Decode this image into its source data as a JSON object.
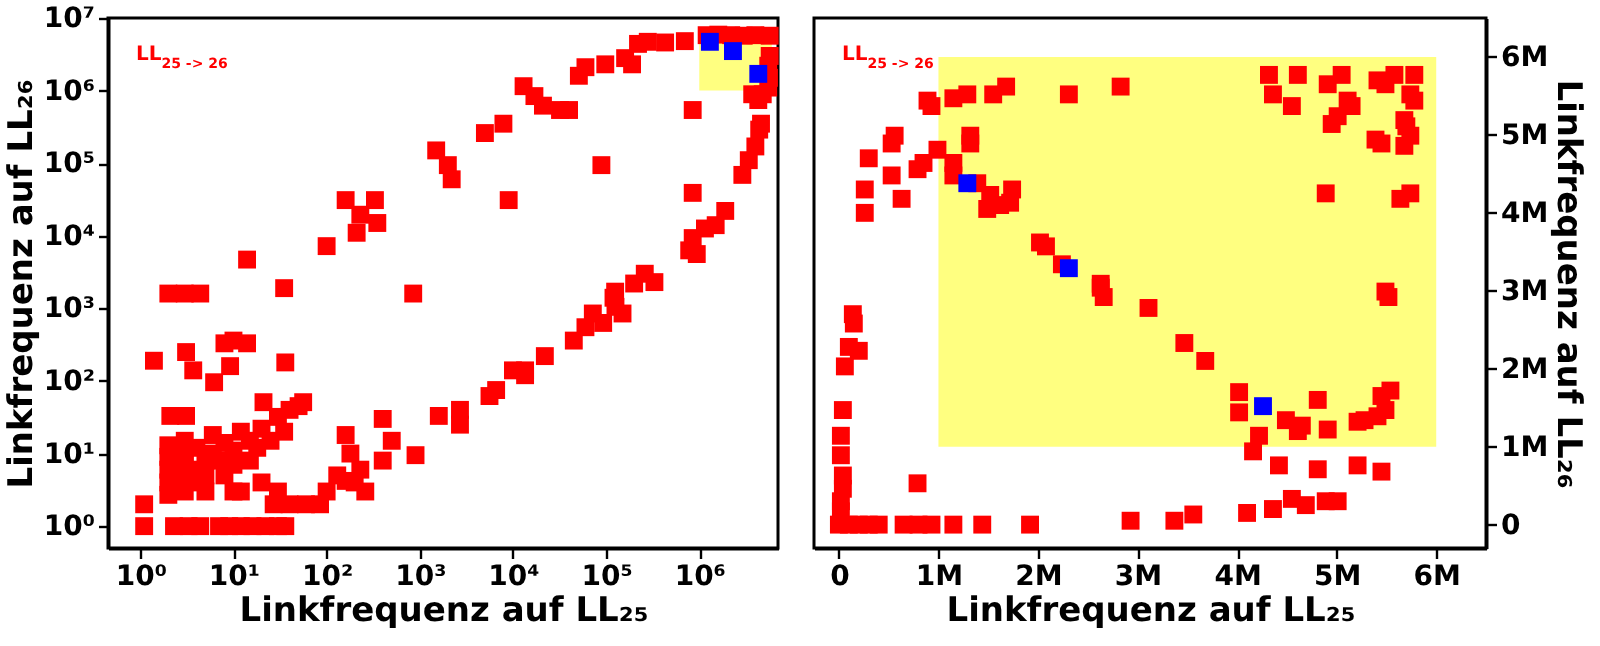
{
  "chart_data": [
    {
      "type": "scatter",
      "xlabel": "Linkfrequenz auf LL₂₅",
      "ylabel": "Linkfrequenz auf LL₂₆",
      "annotations": [
        "LL$_{25 -> 26}$"
      ],
      "log": "xy",
      "marker": "square",
      "xlim": [
        0.45,
        7000000
      ],
      "ylim": [
        0.5,
        10000000
      ],
      "xticks": [
        {
          "value": 1,
          "label": "10⁰"
        },
        {
          "value": 10,
          "label": "10¹"
        },
        {
          "value": 100,
          "label": "10²"
        },
        {
          "value": 1000,
          "label": "10³"
        },
        {
          "value": 10000,
          "label": "10⁴"
        },
        {
          "value": 100000,
          "label": "10⁵"
        },
        {
          "value": 1000000,
          "label": "10⁶"
        }
      ],
      "yticks": [
        {
          "value": 1,
          "label": "10⁰"
        },
        {
          "value": 10,
          "label": "10¹"
        },
        {
          "value": 100,
          "label": "10²"
        },
        {
          "value": 1000,
          "label": "10³"
        },
        {
          "value": 10000,
          "label": "10⁴"
        },
        {
          "value": 100000,
          "label": "10⁵"
        },
        {
          "value": 1000000,
          "label": "10⁶"
        },
        {
          "value": 10000000,
          "label": "10⁷"
        }
      ],
      "series": [
        {
          "type": "area",
          "color": "#ffff80",
          "x": [
            1000000,
            6000000
          ],
          "values": [
            null,
            null
          ],
          "lower": [
            1000000,
            1000000
          ],
          "upper": [
            6000000,
            6000000
          ]
        },
        {
          "color": "#ff0000",
          "x": [
            13000,
            17000,
            21000,
            32000,
            40000,
            51000,
            60000,
            98000,
            160000,
            190000,
            220000,
            280000,
            430000,
            700000,
            1200000,
            1600000,
            2200000,
            3000000,
            4000000,
            5700000,
            5700000,
            5500000,
            5600000,
            5500000,
            4300000,
            4800000,
            3700000,
            4600000,
            4400000,
            4000000,
            3400000,
            2900000,
            1900000,
            1500000,
            1150000,
            940000,
            850000,
            780000,
            850000,
            850000,
            89000,
            9000,
            7900,
            5000,
            1500,
            2000,
            2200,
            160,
            330,
            230,
            350,
            210,
            100,
            14,
            35,
            850,
            2,
            3,
            4.4,
            200000,
            260000,
            330000,
            125000,
            120000,
            126000,
            150000,
            93000,
            72000,
            60000,
            45000,
            22000,
            13500,
            13500,
            10000,
            6600,
            5600,
            2700,
            2700,
            1600,
            900,
            500,
            400,
            400,
            160,
            180,
            230,
            260,
            200,
            130,
            100,
            160,
            85,
            60,
            40,
            27,
            1.1,
            1.1,
            2.3,
            3.3,
            4.4,
            7,
            9,
            12,
            16,
            22,
            30,
            36,
            1.4,
            3.1,
            3.7,
            8,
            10,
            14,
            6.2,
            9.2,
            36,
            2.1,
            3.1,
            21,
            56,
            5,
            7,
            10,
            15,
            20,
            30,
            40,
            50,
            2,
            2,
            2,
            2,
            2,
            3,
            3,
            3,
            3,
            3,
            4,
            4,
            4,
            5,
            5,
            6,
            6,
            8,
            8,
            10,
            10,
            12,
            12,
            15,
            18,
            20,
            25,
            30,
            35
          ],
          "values": [
            1150000,
            840000,
            620000,
            540000,
            540000,
            1600000,
            2100000,
            2300000,
            2800000,
            2300000,
            4400000,
            4700000,
            4600000,
            4800000,
            5800000,
            5900000,
            5800000,
            5700000,
            5800000,
            5700000,
            3000000,
            2200000,
            1500000,
            1100000,
            740000,
            890000,
            890000,
            350000,
            290000,
            170000,
            110000,
            69000,
            22000,
            14000,
            12600,
            5600,
            9300,
            6300,
            39000,
            540000,
            94000,
            31000,
            350000,
            260000,
            150000,
            94000,
            60000,
            31000,
            31000,
            19500,
            15000,
            11000,
            7200,
            4700,
            1900,
            1600,
            1600,
            1600,
            1600,
            2200,
            3000,
            2300,
            1700,
            1400,
            1050,
            850,
            630,
            850,
            550,
            360,
            220,
            140,
            120,
            140,
            75,
            62,
            40,
            25,
            33,
            9.5,
            15,
            30,
            8,
            18,
            10,
            6,
            3,
            4,
            5,
            3,
            4.2,
            2,
            2,
            2,
            2,
            2,
            1,
            1,
            1,
            1,
            1,
            1,
            1,
            1,
            1,
            1,
            1,
            190,
            250,
            140,
            330,
            360,
            330,
            96,
            160,
            180,
            33,
            33,
            51,
            51,
            5,
            8,
            11,
            15,
            22,
            32,
            40,
            45,
            2.7,
            4,
            6,
            9,
            13,
            3,
            5,
            7,
            10,
            15,
            4,
            6,
            12,
            3,
            8,
            10,
            18,
            5,
            14,
            3,
            7,
            20,
            3,
            8,
            12,
            4,
            15,
            3,
            20
          ]
        },
        {
          "color": "#0000ff",
          "x": [
            1300000,
            2300000,
            4300000
          ],
          "values": [
            4700000,
            3500000,
            1700000
          ]
        }
      ]
    },
    {
      "type": "scatter",
      "xlabel": "Linkfrequenz auf LL₂₅",
      "y2label": "Linkfrequenz auf LL₂₆",
      "annotations": [
        "LL$_{25 -> 26}$"
      ],
      "marker": "square",
      "xlim": [
        -250000,
        6500000
      ],
      "y2lim": [
        -300000,
        6500000
      ],
      "xticks": [
        0,
        {
          "value": 1000000,
          "label": "1M"
        },
        {
          "value": 2000000,
          "label": "2M"
        },
        {
          "value": 3000000,
          "label": "3M"
        },
        {
          "value": 4000000,
          "label": "4M"
        },
        {
          "value": 5000000,
          "label": "5M"
        },
        {
          "value": 6000000,
          "label": "6M"
        }
      ],
      "y2ticks": [
        0,
        {
          "value": 1000000,
          "label": "1M"
        },
        {
          "value": 2000000,
          "label": "2M"
        },
        {
          "value": 3000000,
          "label": "3M"
        },
        {
          "value": 4000000,
          "label": "4M"
        },
        {
          "value": 5000000,
          "label": "5M"
        },
        {
          "value": 6000000,
          "label": "6M"
        }
      ],
      "series": [
        {
          "type": "area",
          "color": "#ffff80",
          "axis": "y2",
          "x": [
            1000000,
            6000000
          ],
          "values": [
            null,
            null
          ],
          "lower": [
            1000000,
            1000000
          ],
          "upper": [
            6000000,
            6000000
          ]
        },
        {
          "color": "#ff0000",
          "axis": "y2",
          "x": [
            890000,
            930000,
            1150000,
            1290000,
            1550000,
            1680000,
            2310000,
            2830000,
            560000,
            530000,
            1320000,
            1320000,
            300000,
            260000,
            260000,
            530000,
            630000,
            790000,
            850000,
            990000,
            1150000,
            1150000,
            1390000,
            1520000,
            1490000,
            1620000,
            1720000,
            1740000,
            2020000,
            2080000,
            2240000,
            2630000,
            2630000,
            2660000,
            3110000,
            3470000,
            3680000,
            4020000,
            4020000,
            4220000,
            4160000,
            4420000,
            4490000,
            4650000,
            4610000,
            4810000,
            4810000,
            4910000,
            5210000,
            5280000,
            5210000,
            5450000,
            5490000,
            5540000,
            5410000,
            5450000,
            5490000,
            5520000,
            4320000,
            4360000,
            4610000,
            4550000,
            4910000,
            5050000,
            4950000,
            5010000,
            5110000,
            5150000,
            5410000,
            5580000,
            5490000,
            5780000,
            5740000,
            5780000,
            5680000,
            5700000,
            5390000,
            5450000,
            5740000,
            5680000,
            4890000,
            5640000,
            5740000,
            2930000,
            3370000,
            3560000,
            4100000,
            4360000,
            4550000,
            4690000,
            4890000,
            5010000,
            0,
            100000,
            200000,
            300000,
            400000,
            650000,
            800000,
            930000,
            1150000,
            1440000,
            1920000,
            790000,
            140000,
            150000,
            100000,
            200000,
            60000,
            40000,
            20000,
            20000,
            40000,
            40000,
            20000,
            20000
          ],
          "values": [
            5440000,
            5370000,
            5470000,
            5520000,
            5520000,
            5620000,
            5520000,
            5620000,
            4990000,
            4890000,
            4990000,
            4890000,
            4700000,
            4300000,
            4000000,
            4480000,
            4180000,
            4560000,
            4640000,
            4810000,
            4640000,
            4480000,
            4380000,
            4230000,
            4050000,
            4100000,
            4130000,
            4300000,
            3620000,
            3570000,
            3340000,
            3090000,
            3040000,
            2920000,
            2780000,
            2330000,
            2100000,
            1700000,
            1440000,
            1140000,
            940000,
            760000,
            1340000,
            1270000,
            1200000,
            1600000,
            710000,
            1220000,
            1320000,
            1340000,
            760000,
            1650000,
            1470000,
            1720000,
            1390000,
            680000,
            2990000,
            2920000,
            5770000,
            5520000,
            5770000,
            5370000,
            5650000,
            5770000,
            5140000,
            5240000,
            5440000,
            5370000,
            5700000,
            5770000,
            5650000,
            5770000,
            5520000,
            5440000,
            5190000,
            5110000,
            4940000,
            4890000,
            4990000,
            4860000,
            4250000,
            4180000,
            4250000,
            50000,
            50000,
            130000,
            150000,
            200000,
            330000,
            250000,
            300000,
            300000,
            0,
            0,
            0,
            0,
            0,
            0,
            0,
            0,
            0,
            0,
            0,
            530000,
            2700000,
            2580000,
            2280000,
            2230000,
            2030000,
            1470000,
            1140000,
            890000,
            630000,
            460000,
            300000,
            170000
          ]
        },
        {
          "color": "#0000ff",
          "axis": "y2",
          "x": [
            1290000,
            2310000,
            4260000
          ],
          "values": [
            4380000,
            3290000,
            1520000
          ]
        }
      ]
    }
  ]
}
